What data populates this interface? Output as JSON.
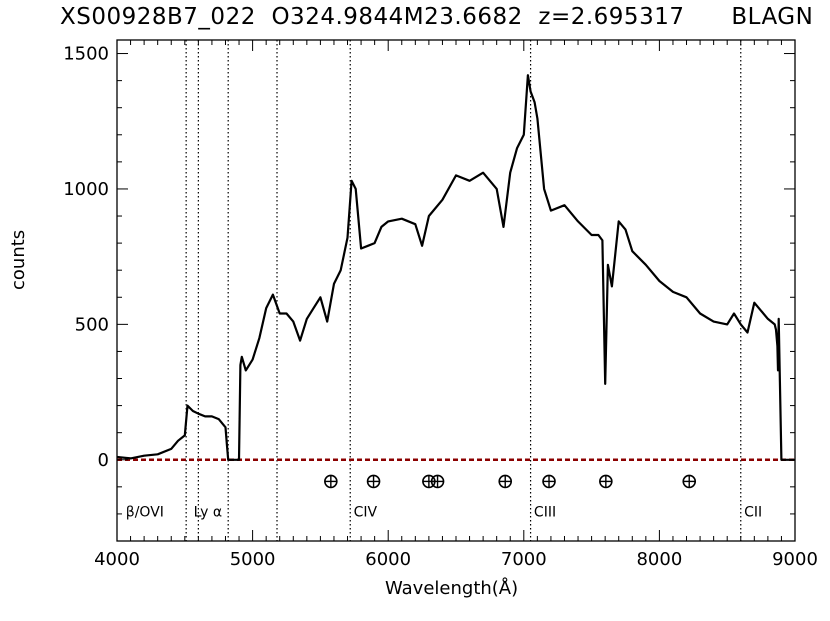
{
  "chart_data": {
    "type": "line",
    "title": "XS00928B7_022  O324.9844M23.6682  z=2.695317      BLAGN",
    "xlabel": "Wavelength(Å)",
    "ylabel": "counts",
    "xlim": [
      4000,
      9000
    ],
    "ylim": [
      -300,
      1550
    ],
    "x_ticks": [
      4000,
      5000,
      6000,
      7000,
      8000,
      9000
    ],
    "x_tick_labels": [
      "4000",
      "5000",
      "6000",
      "7000",
      "8000",
      "9000"
    ],
    "y_ticks": [
      0,
      500,
      1000,
      1500
    ],
    "y_tick_labels": [
      "0",
      "500",
      "1000",
      "1500"
    ],
    "grid": false,
    "series": [
      {
        "color": "#000000",
        "x": [
          4000,
          4100,
          4200,
          4300,
          4400,
          4450,
          4500,
          4520,
          4560,
          4600,
          4650,
          4700,
          4750,
          4800,
          4810,
          4820,
          4830,
          4900,
          4910,
          4920,
          4950,
          5000,
          5050,
          5100,
          5150,
          5200,
          5250,
          5300,
          5350,
          5400,
          5450,
          5500,
          5550,
          5600,
          5650,
          5700,
          5730,
          5760,
          5800,
          5850,
          5900,
          5950,
          6000,
          6100,
          6200,
          6250,
          6300,
          6400,
          6500,
          6600,
          6700,
          6800,
          6850,
          6900,
          6950,
          7000,
          7030,
          7050,
          7080,
          7100,
          7150,
          7200,
          7300,
          7400,
          7500,
          7550,
          7580,
          7600,
          7620,
          7650,
          7700,
          7750,
          7800,
          7900,
          8000,
          8100,
          8200,
          8300,
          8400,
          8500,
          8550,
          8600,
          8650,
          8700,
          8750,
          8800,
          8850,
          8860,
          8870,
          8875,
          8880,
          8900,
          9000
        ],
        "y": [
          10,
          5,
          15,
          20,
          40,
          70,
          90,
          200,
          180,
          170,
          160,
          160,
          150,
          120,
          60,
          0,
          0,
          0,
          350,
          380,
          330,
          370,
          450,
          560,
          610,
          540,
          540,
          510,
          440,
          520,
          560,
          600,
          510,
          650,
          700,
          820,
          1030,
          1000,
          780,
          790,
          800,
          860,
          880,
          890,
          870,
          790,
          900,
          960,
          1050,
          1030,
          1060,
          1000,
          860,
          1060,
          1150,
          1200,
          1420,
          1360,
          1320,
          1260,
          1000,
          920,
          940,
          880,
          830,
          830,
          810,
          280,
          720,
          640,
          880,
          850,
          770,
          720,
          660,
          620,
          600,
          540,
          510,
          500,
          540,
          500,
          470,
          580,
          550,
          520,
          500,
          480,
          420,
          330,
          520,
          0,
          0
        ]
      }
    ],
    "zero_line": {
      "y": 0,
      "color": "#8b0000"
    },
    "vertical_lines": [
      4510,
      4600,
      4820,
      5180,
      5720,
      7050,
      8600
    ],
    "line_labels": [
      {
        "x": 4050,
        "text": "β/OVI"
      },
      {
        "x": 4550,
        "text": "Ly α"
      },
      {
        "x": 5730,
        "text": "CIV"
      },
      {
        "x": 7060,
        "text": "CIII"
      },
      {
        "x": 8610,
        "text": "CII"
      }
    ],
    "telluric_markers": [
      5577,
      5892,
      6300,
      6364,
      6863,
      7186,
      7605,
      8220
    ],
    "telluric_marker_y": -80
  }
}
